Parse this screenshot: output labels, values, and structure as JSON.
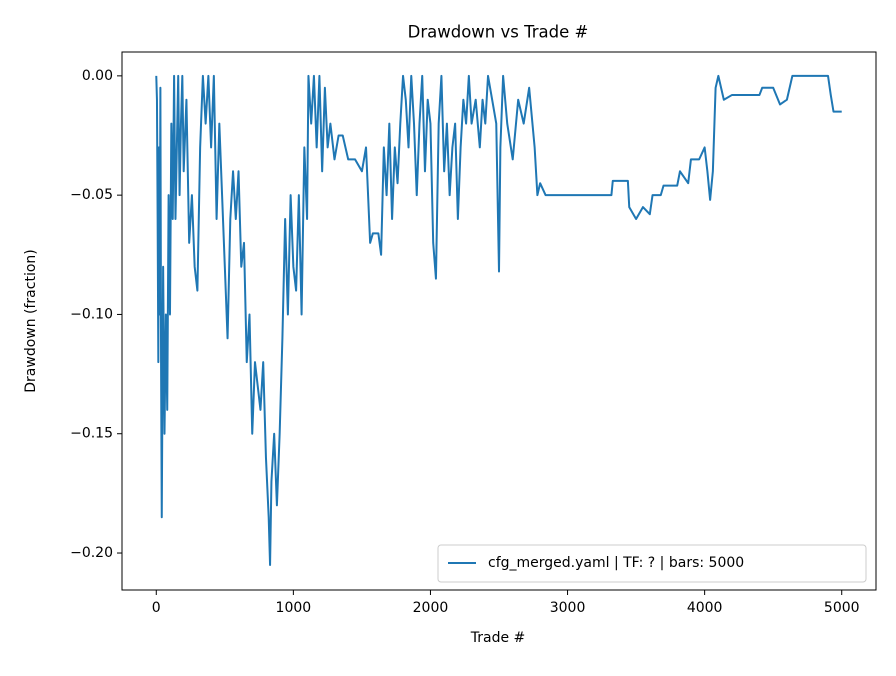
{
  "chart_data": {
    "type": "line",
    "title": "Drawdown vs Trade #",
    "x_label": "Trade #",
    "y_label": "Drawdown (fraction)",
    "legend": "lower right",
    "xlim": [
      -250,
      5250
    ],
    "ylim": [
      -0.2155,
      0.01
    ],
    "xticks": [
      0,
      1000,
      2000,
      3000,
      4000,
      5000
    ],
    "yticks": [
      {
        "value": -0.2,
        "label": "−0.20"
      },
      {
        "value": -0.15,
        "label": "−0.15"
      },
      {
        "value": -0.1,
        "label": "−0.10"
      },
      {
        "value": -0.05,
        "label": "−0.05"
      },
      {
        "value": 0,
        "label": "0.00"
      }
    ],
    "x": [
      0,
      5,
      10,
      15,
      20,
      25,
      30,
      35,
      40,
      50,
      60,
      70,
      80,
      90,
      100,
      110,
      120,
      130,
      140,
      150,
      160,
      170,
      180,
      190,
      200,
      220,
      240,
      260,
      280,
      300,
      320,
      340,
      360,
      380,
      400,
      420,
      440,
      460,
      480,
      500,
      520,
      540,
      560,
      580,
      600,
      620,
      640,
      660,
      680,
      700,
      720,
      740,
      760,
      780,
      800,
      820,
      830,
      840,
      860,
      880,
      900,
      920,
      940,
      960,
      980,
      1000,
      1020,
      1040,
      1060,
      1080,
      1100,
      1110,
      1130,
      1150,
      1170,
      1190,
      1210,
      1230,
      1250,
      1270,
      1300,
      1330,
      1360,
      1400,
      1450,
      1500,
      1530,
      1560,
      1580,
      1620,
      1640,
      1660,
      1680,
      1700,
      1720,
      1740,
      1760,
      1780,
      1800,
      1820,
      1840,
      1860,
      1880,
      1900,
      1920,
      1940,
      1960,
      1980,
      2000,
      2020,
      2040,
      2060,
      2080,
      2100,
      2120,
      2140,
      2160,
      2180,
      2200,
      2220,
      2240,
      2260,
      2280,
      2300,
      2330,
      2360,
      2380,
      2400,
      2420,
      2450,
      2480,
      2500,
      2510,
      2530,
      2560,
      2600,
      2640,
      2680,
      2720,
      2760,
      2780,
      2800,
      2840,
      3000,
      3320,
      3330,
      3440,
      3450,
      3500,
      3550,
      3600,
      3620,
      3680,
      3700,
      3800,
      3820,
      3880,
      3900,
      3960,
      4000,
      4020,
      4040,
      4060,
      4080,
      4100,
      4140,
      4200,
      4400,
      4420,
      4500,
      4550,
      4600,
      4640,
      4900,
      4920,
      4940,
      5000
    ],
    "series": [
      {
        "name": "cfg_merged.yaml | TF: ? | bars: 5000",
        "color": "#1f77b4",
        "values": [
          0,
          -0.01,
          -0.06,
          -0.12,
          -0.03,
          -0.1,
          -0.005,
          -0.12,
          -0.185,
          -0.08,
          -0.15,
          -0.1,
          -0.14,
          -0.05,
          -0.1,
          -0.02,
          -0.06,
          0,
          -0.06,
          -0.03,
          0,
          -0.05,
          -0.02,
          0,
          -0.04,
          -0.01,
          -0.07,
          -0.05,
          -0.08,
          -0.09,
          -0.03,
          0,
          -0.02,
          0,
          -0.03,
          0,
          -0.06,
          -0.02,
          -0.05,
          -0.08,
          -0.11,
          -0.06,
          -0.04,
          -0.06,
          -0.04,
          -0.08,
          -0.07,
          -0.12,
          -0.1,
          -0.15,
          -0.12,
          -0.13,
          -0.14,
          -0.12,
          -0.16,
          -0.185,
          -0.205,
          -0.17,
          -0.15,
          -0.18,
          -0.15,
          -0.11,
          -0.06,
          -0.1,
          -0.05,
          -0.08,
          -0.09,
          -0.05,
          -0.1,
          -0.03,
          -0.06,
          0,
          -0.02,
          0,
          -0.03,
          0,
          -0.04,
          -0.005,
          -0.03,
          -0.02,
          -0.035,
          -0.025,
          -0.025,
          -0.035,
          -0.035,
          -0.04,
          -0.03,
          -0.07,
          -0.066,
          -0.066,
          -0.075,
          -0.03,
          -0.05,
          -0.02,
          -0.06,
          -0.03,
          -0.045,
          -0.02,
          0,
          -0.01,
          -0.03,
          0,
          -0.02,
          -0.05,
          -0.02,
          0,
          -0.04,
          -0.01,
          -0.02,
          -0.07,
          -0.085,
          -0.02,
          0,
          -0.04,
          -0.02,
          -0.05,
          -0.03,
          -0.02,
          -0.06,
          -0.03,
          -0.01,
          -0.02,
          0,
          -0.02,
          -0.01,
          -0.03,
          -0.01,
          -0.02,
          0,
          -0.01,
          -0.02,
          -0.082,
          -0.03,
          0,
          -0.02,
          -0.035,
          -0.01,
          -0.02,
          -0.005,
          -0.03,
          -0.05,
          -0.045,
          -0.05,
          -0.05,
          -0.05,
          -0.044,
          -0.044,
          -0.055,
          -0.06,
          -0.055,
          -0.058,
          -0.05,
          -0.05,
          -0.046,
          -0.046,
          -0.04,
          -0.045,
          -0.035,
          -0.035,
          -0.03,
          -0.04,
          -0.052,
          -0.04,
          -0.005,
          0,
          -0.01,
          -0.008,
          -0.008,
          -0.005,
          -0.005,
          -0.012,
          -0.01,
          0,
          0,
          -0.008,
          -0.015,
          -0.015
        ]
      }
    ]
  }
}
